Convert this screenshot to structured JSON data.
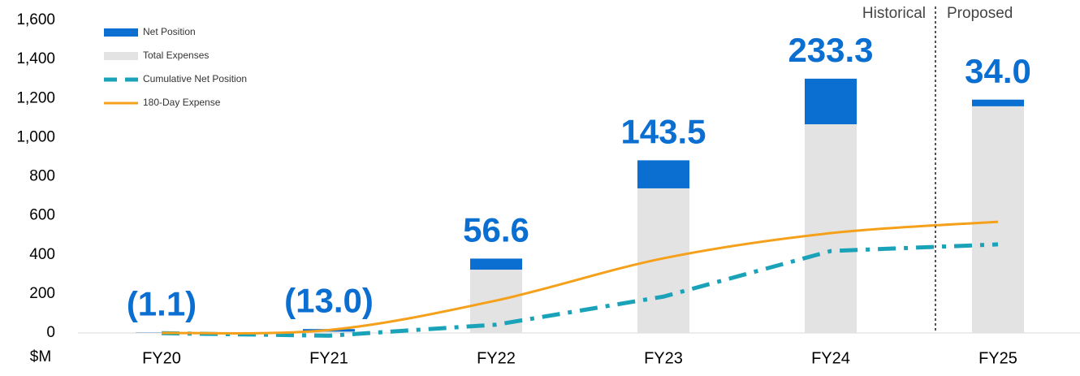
{
  "chart_data": {
    "type": "bar",
    "y_label": "$M",
    "categories": [
      "FY20",
      "FY21",
      "FY22",
      "FY23",
      "FY24",
      "FY25"
    ],
    "ylim": [
      0,
      1600
    ],
    "yticks": [
      0,
      200,
      400,
      600,
      800,
      {
        "value": 1000,
        "label": "1,000"
      },
      {
        "value": 1200,
        "label": "1,200"
      },
      {
        "value": 1400,
        "label": "1,400"
      },
      {
        "value": 1600,
        "label": "1,600"
      }
    ],
    "annotations": [
      "Historical",
      "Proposed"
    ],
    "series": [
      {
        "name": "Net Position",
        "kind": "bar",
        "color": "#0a6fd1",
        "values": [
          -1.1,
          -13.0,
          56.6,
          143.5,
          233.3,
          34.0
        ],
        "value_labels": [
          "(1.1)",
          "(13.0)",
          "56.6",
          "143.5",
          "233.3",
          "34.0"
        ]
      },
      {
        "name": "Total Expenses",
        "kind": "bar",
        "color": "#e3e3e3",
        "values": [
          3,
          20,
          324,
          740,
          1068,
          1160
        ]
      },
      {
        "name": "Cumulative Net Position",
        "kind": "line",
        "dash": true,
        "color": "#1aa3b8",
        "values": [
          -1.1,
          -14.1,
          42.5,
          186.0,
          419.3,
          453.3
        ]
      },
      {
        "name": "180-Day Expense",
        "kind": "line",
        "dash": false,
        "color": "#f5a01a",
        "values": [
          0,
          15,
          166,
          382,
          511,
          569
        ]
      }
    ]
  }
}
